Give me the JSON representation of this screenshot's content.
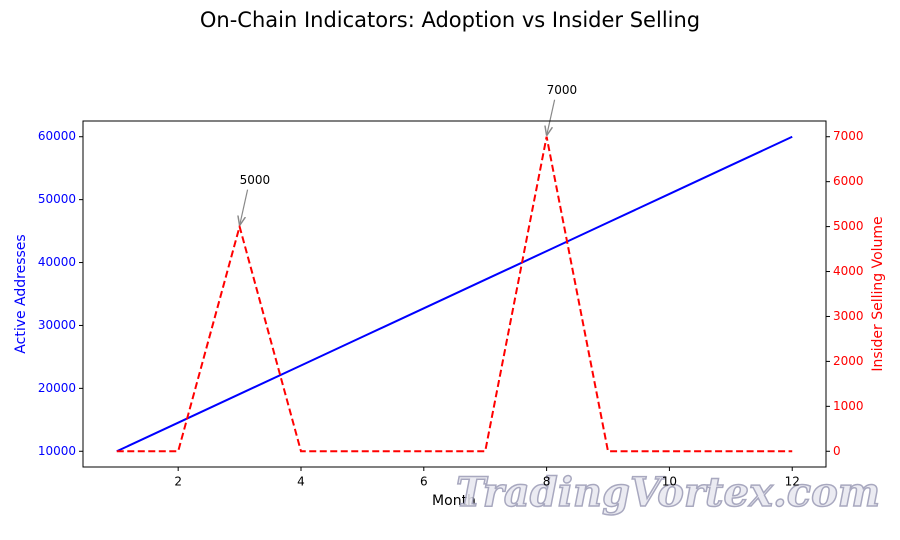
{
  "chart_data": {
    "type": "line",
    "title": "On-Chain Indicators: Adoption vs Insider Selling",
    "x_label": "Month",
    "y_label": "Active Addresses",
    "y2_label": "Insider Selling Volume",
    "x": [
      1,
      2,
      3,
      4,
      5,
      6,
      7,
      8,
      9,
      10,
      11,
      12
    ],
    "series": [
      {
        "name": "Active Addresses",
        "color": "#0000ff",
        "style": "solid",
        "values": [
          10000,
          14545,
          19091,
          23636,
          28182,
          32727,
          37273,
          41818,
          46364,
          50909,
          55455,
          60000
        ]
      },
      {
        "name": "Insider Selling Volume",
        "color": "#ff0000",
        "style": "dashed",
        "axis": "y2",
        "values": [
          0,
          0,
          5000,
          0,
          0,
          0,
          0,
          7000,
          0,
          0,
          0,
          0
        ]
      }
    ],
    "annotations": [
      {
        "x": 3,
        "value": 5000,
        "label": "5000"
      },
      {
        "x": 8,
        "value": 7000,
        "label": "7000"
      }
    ],
    "xlim": [
      0.45,
      12.55
    ],
    "xticks": [
      2,
      4,
      6,
      8,
      10,
      12
    ],
    "ylim": [
      7500,
      62500
    ],
    "yticks": [
      10000,
      20000,
      30000,
      40000,
      50000,
      60000
    ],
    "y2lim": [
      -350,
      7350
    ],
    "y2ticks": [
      0,
      1000,
      2000,
      3000,
      4000,
      5000,
      6000,
      7000
    ],
    "grid": false,
    "watermark": "TradingVortex.com"
  }
}
